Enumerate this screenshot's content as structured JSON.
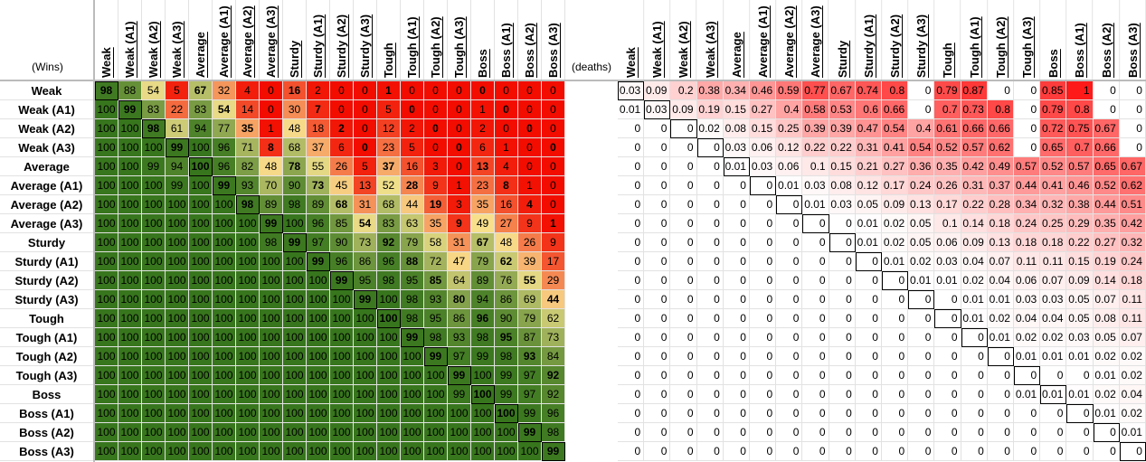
{
  "wins_label": "(Wins)",
  "deaths_label": "(deaths)",
  "labels": [
    "Weak",
    "Weak (A1)",
    "Weak (A2)",
    "Weak (A3)",
    "Average",
    "Average (A1)",
    "Average (A2)",
    "Average (A3)",
    "Sturdy",
    "Sturdy (A1)",
    "Sturdy (A2)",
    "Sturdy (A3)",
    "Tough",
    "Tough (A1)",
    "Tough (A2)",
    "Tough (A3)",
    "Boss",
    "Boss (A1)",
    "Boss (A2)",
    "Boss (A3)"
  ],
  "wins_color_scale": [
    "#f20d00",
    "#f7e38f",
    "#38761d"
  ],
  "deaths_color_scale": [
    "#ffffff",
    "#ff1a1a"
  ],
  "wins": [
    [
      98,
      88,
      54,
      5,
      67,
      32,
      4,
      0,
      16,
      2,
      0,
      0,
      1,
      0,
      0,
      0,
      0,
      0,
      0,
      0
    ],
    [
      100,
      99,
      83,
      22,
      83,
      54,
      14,
      0,
      30,
      7,
      0,
      0,
      5,
      0,
      0,
      0,
      1,
      0,
      0,
      0
    ],
    [
      100,
      100,
      98,
      61,
      94,
      77,
      35,
      1,
      48,
      18,
      2,
      0,
      12,
      2,
      0,
      0,
      2,
      0,
      0,
      0
    ],
    [
      100,
      100,
      100,
      99,
      100,
      96,
      71,
      8,
      68,
      37,
      6,
      0,
      23,
      5,
      0,
      0,
      6,
      1,
      0,
      0
    ],
    [
      100,
      100,
      99,
      94,
      100,
      96,
      82,
      48,
      78,
      55,
      26,
      5,
      37,
      16,
      3,
      0,
      13,
      4,
      0,
      0
    ],
    [
      100,
      100,
      100,
      99,
      100,
      99,
      93,
      70,
      90,
      73,
      45,
      13,
      52,
      28,
      9,
      1,
      23,
      8,
      1,
      0
    ],
    [
      100,
      100,
      100,
      100,
      100,
      100,
      98,
      89,
      98,
      89,
      68,
      31,
      68,
      44,
      19,
      3,
      35,
      16,
      4,
      0
    ],
    [
      100,
      100,
      100,
      100,
      100,
      100,
      100,
      99,
      100,
      96,
      85,
      54,
      83,
      63,
      35,
      9,
      49,
      27,
      9,
      1
    ],
    [
      100,
      100,
      100,
      100,
      100,
      100,
      100,
      98,
      99,
      97,
      90,
      73,
      92,
      79,
      58,
      31,
      67,
      48,
      26,
      9
    ],
    [
      100,
      100,
      100,
      100,
      100,
      100,
      100,
      100,
      100,
      99,
      96,
      86,
      96,
      88,
      72,
      47,
      79,
      62,
      39,
      17
    ],
    [
      100,
      100,
      100,
      100,
      100,
      100,
      100,
      100,
      100,
      100,
      99,
      95,
      98,
      95,
      85,
      64,
      89,
      76,
      55,
      29
    ],
    [
      100,
      100,
      100,
      100,
      100,
      100,
      100,
      100,
      100,
      100,
      100,
      99,
      100,
      98,
      93,
      80,
      94,
      86,
      69,
      44
    ],
    [
      100,
      100,
      100,
      100,
      100,
      100,
      100,
      100,
      100,
      100,
      100,
      100,
      100,
      98,
      95,
      86,
      96,
      90,
      79,
      62
    ],
    [
      100,
      100,
      100,
      100,
      100,
      100,
      100,
      100,
      100,
      100,
      100,
      100,
      100,
      99,
      98,
      93,
      98,
      95,
      87,
      73
    ],
    [
      100,
      100,
      100,
      100,
      100,
      100,
      100,
      100,
      100,
      100,
      100,
      100,
      100,
      100,
      99,
      97,
      99,
      98,
      93,
      84
    ],
    [
      100,
      100,
      100,
      100,
      100,
      100,
      100,
      100,
      100,
      100,
      100,
      100,
      100,
      100,
      100,
      99,
      100,
      99,
      97,
      92
    ],
    [
      100,
      100,
      100,
      100,
      100,
      100,
      100,
      100,
      100,
      100,
      100,
      100,
      100,
      100,
      100,
      99,
      100,
      99,
      97,
      92
    ],
    [
      100,
      100,
      100,
      100,
      100,
      100,
      100,
      100,
      100,
      100,
      100,
      100,
      100,
      100,
      100,
      100,
      100,
      100,
      99,
      96
    ],
    [
      100,
      100,
      100,
      100,
      100,
      100,
      100,
      100,
      100,
      100,
      100,
      100,
      100,
      100,
      100,
      100,
      100,
      100,
      99,
      98
    ],
    [
      100,
      100,
      100,
      100,
      100,
      100,
      100,
      100,
      100,
      100,
      100,
      100,
      100,
      100,
      100,
      100,
      100,
      100,
      100,
      99
    ]
  ],
  "deaths": [
    [
      0.03,
      0.09,
      0.2,
      0.38,
      0.34,
      0.46,
      0.59,
      0.77,
      0.67,
      0.74,
      0.8,
      0,
      0.79,
      0.87,
      0,
      0,
      0.85,
      1,
      0,
      0
    ],
    [
      0.01,
      0.03,
      0.09,
      0.19,
      0.15,
      0.27,
      0.4,
      0.58,
      0.53,
      0.6,
      0.66,
      0,
      0.7,
      0.73,
      0.8,
      0,
      0.79,
      0.8,
      0,
      0
    ],
    [
      0,
      0,
      0,
      0.02,
      0.08,
      0.15,
      0.25,
      0.39,
      0.39,
      0.47,
      0.54,
      0.4,
      0.61,
      0.66,
      0.66,
      0,
      0.72,
      0.75,
      0.67,
      0
    ],
    [
      0,
      0,
      0,
      0,
      0.03,
      0.06,
      0.12,
      0.22,
      0.22,
      0.31,
      0.41,
      0.54,
      0.52,
      0.57,
      0.62,
      0,
      0.65,
      0.7,
      0.66,
      0
    ],
    [
      0,
      0,
      0,
      0,
      0.01,
      0.03,
      0.06,
      0.1,
      0.15,
      0.21,
      0.27,
      0.36,
      0.35,
      0.42,
      0.49,
      0.57,
      0.52,
      0.57,
      0.65,
      0.67
    ],
    [
      0,
      0,
      0,
      0,
      0,
      0,
      0.01,
      0.03,
      0.08,
      0.12,
      0.17,
      0.24,
      0.26,
      0.31,
      0.37,
      0.44,
      0.41,
      0.46,
      0.52,
      0.62
    ],
    [
      0,
      0,
      0,
      0,
      0,
      0,
      0,
      0.01,
      0.03,
      0.05,
      0.09,
      0.13,
      0.17,
      0.22,
      0.28,
      0.34,
      0.32,
      0.38,
      0.44,
      0.51
    ],
    [
      0,
      0,
      0,
      0,
      0,
      0,
      0,
      0,
      0,
      0.01,
      0.02,
      0.05,
      0.1,
      0.14,
      0.18,
      0.24,
      0.25,
      0.29,
      0.35,
      0.42
    ],
    [
      0,
      0,
      0,
      0,
      0,
      0,
      0,
      0,
      0,
      0.01,
      0.02,
      0.05,
      0.06,
      0.09,
      0.13,
      0.18,
      0.18,
      0.22,
      0.27,
      0.32
    ],
    [
      0,
      0,
      0,
      0,
      0,
      0,
      0,
      0,
      0,
      0,
      0.01,
      0.02,
      0.03,
      0.04,
      0.07,
      0.11,
      0.11,
      0.15,
      0.19,
      0.24
    ],
    [
      0,
      0,
      0,
      0,
      0,
      0,
      0,
      0,
      0,
      0,
      0,
      0.01,
      0.01,
      0.02,
      0.04,
      0.06,
      0.07,
      0.09,
      0.14,
      0.18
    ],
    [
      0,
      0,
      0,
      0,
      0,
      0,
      0,
      0,
      0,
      0,
      0,
      0,
      0,
      0.01,
      0.01,
      0.03,
      0.03,
      0.05,
      0.07,
      0.11
    ],
    [
      0,
      0,
      0,
      0,
      0,
      0,
      0,
      0,
      0,
      0,
      0,
      0,
      0,
      0.01,
      0.02,
      0.04,
      0.04,
      0.05,
      0.08,
      0.11
    ],
    [
      0,
      0,
      0,
      0,
      0,
      0,
      0,
      0,
      0,
      0,
      0,
      0,
      0,
      0,
      0.01,
      0.02,
      0.02,
      0.03,
      0.05,
      0.07
    ],
    [
      0,
      0,
      0,
      0,
      0,
      0,
      0,
      0,
      0,
      0,
      0,
      0,
      0,
      0,
      0,
      0.01,
      0.01,
      0.01,
      0.02,
      0.02
    ],
    [
      0,
      0,
      0,
      0,
      0,
      0,
      0,
      0,
      0,
      0,
      0,
      0,
      0,
      0,
      0,
      0,
      0,
      0,
      0.01,
      0.02
    ],
    [
      0,
      0,
      0,
      0,
      0,
      0,
      0,
      0,
      0,
      0,
      0,
      0,
      0,
      0,
      0,
      0.01,
      0.01,
      0.01,
      0.02,
      0.04
    ],
    [
      0,
      0,
      0,
      0,
      0,
      0,
      0,
      0,
      0,
      0,
      0,
      0,
      0,
      0,
      0,
      0,
      0,
      0,
      0.01,
      0.02
    ],
    [
      0,
      0,
      0,
      0,
      0,
      0,
      0,
      0,
      0,
      0,
      0,
      0,
      0,
      0,
      0,
      0,
      0,
      0,
      0,
      0.01
    ],
    [
      0,
      0,
      0,
      0,
      0,
      0,
      0,
      0,
      0,
      0,
      0,
      0,
      0,
      0,
      0,
      0,
      0,
      0,
      0,
      0
    ]
  ]
}
